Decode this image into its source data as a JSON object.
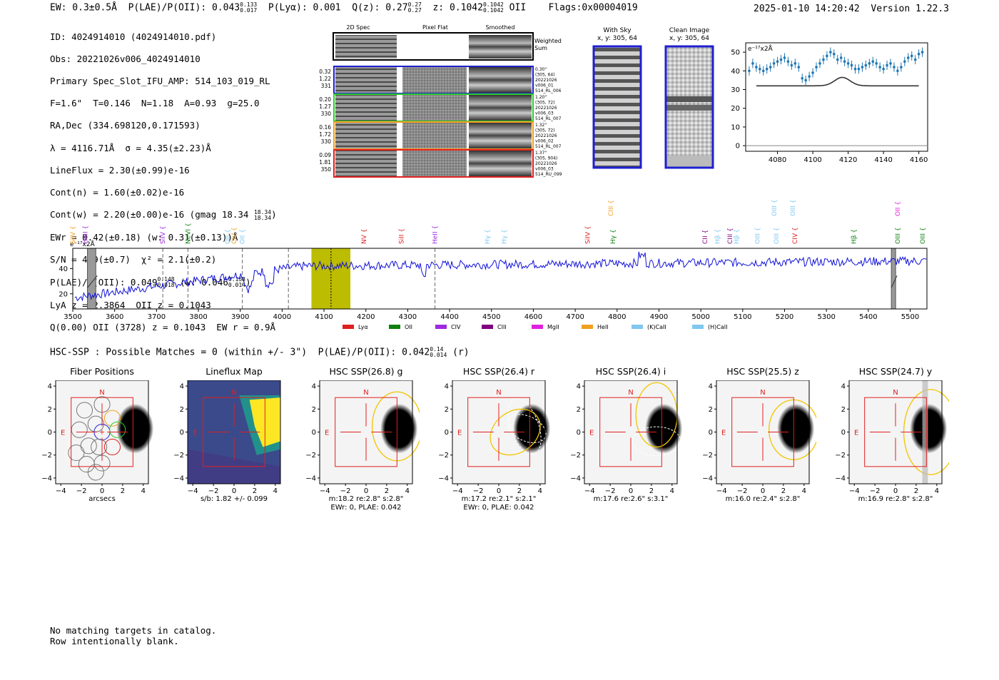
{
  "header": {
    "ew": "EW: 0.3±0.5Å",
    "plae_label": "P(LAE)/P(OII): 0.043",
    "plae_hi": "0.133",
    "plae_lo": "0.017",
    "plya": "P(Lyα): 0.001",
    "qz_label": "Q(z): 0.27",
    "qz_hi": "0.27",
    "qz_lo": "0.27",
    "z_label": "z: 0.1042",
    "z_hi": "0.1042",
    "z_lo": "0.1042",
    "z_line": "OII",
    "flags": "Flags:0x00004019",
    "timestamp": "2025-01-10 14:20:42",
    "version": "Version 1.22.3"
  },
  "info": {
    "id": "ID: 4024914010 (4024914010.pdf)",
    "obs": "Obs: 20221026v006_4024914010",
    "slot": "Primary Spec_Slot_IFU_AMP: 514_103_019_RL",
    "params": "F=1.6\"  T=0.146  N=1.18  A=0.93  g=25.0",
    "radec": "RA,Dec (334.698120,0.171593)",
    "lambda": "λ = 4116.71Å  σ = 4.35(±2.23)Å",
    "lineflux": "LineFlux = 2.30(±0.99)e-16",
    "contn": "Cont(n) = 1.60(±0.02)e-16",
    "contw": "Cont(w) = 2.20(±0.00)e-16 (gmag 18.34",
    "contw_hi": "18.34",
    "contw_lo": "18.34",
    "contw_end": ")",
    "ewr": "EWr = 0.42(±0.18) (w: 0.31(±0.13))Å",
    "sn": "S/N = 4.9(±0.7)  χ² = 2.1(±0.2)",
    "plae": "P(LAE)/P(OII): 0.049",
    "plae_hi": "0.148",
    "plae_lo": "0.018",
    "plae_w": "(w: 0.046",
    "plae_w_hi": "0.158",
    "plae_w_lo": "0.014",
    "plae_w_end": ")",
    "lya": "LyA z = 2.3864  OII z = 0.1043",
    "q": "Q(0.00) OII (3728) z = 0.1043  EW r = 0.9Å"
  },
  "cutouts": {
    "col_2d": "2D Spec",
    "col_flat": "Pixel Flat",
    "col_smooth": "Smoothed",
    "weighted": "Weighted\nSum",
    "rows": [
      {
        "left": [
          "0.32",
          "1.22",
          "331"
        ],
        "right": [
          "0.30\"",
          "(305, 64)",
          "20221026",
          "v006_01",
          "514_RL_006"
        ],
        "color": "#1f1fd0"
      },
      {
        "left": [
          "0.20",
          "1.27",
          "330"
        ],
        "right": [
          "1.20\"",
          "(305, 72)",
          "20221026",
          "v006_03",
          "514_RL_007"
        ],
        "color": "#2ecc2e"
      },
      {
        "left": [
          "0.16",
          "1.72",
          "330"
        ],
        "right": [
          "1.32\"",
          "(305, 72)",
          "20221026",
          "v006_02",
          "514_RL_007"
        ],
        "color": "#f0a020"
      },
      {
        "left": [
          "0.09",
          "1.81",
          "350"
        ],
        "right": [
          "1.37\"",
          "(305, 904)",
          "20221026",
          "v006_03",
          "514_RU_099"
        ],
        "color": "#e02020"
      }
    ],
    "with_sky": "With Sky",
    "with_sky_xy": "x, y: 305, 64",
    "clean": "Clean Image",
    "clean_xy": "x, y: 305, 64"
  },
  "chart_data": [
    {
      "type": "scatter",
      "title": "",
      "ylabel_text": "e⁻¹⁷x2Å",
      "xlim": [
        4062,
        4165
      ],
      "ylim": [
        -3,
        55
      ],
      "xticks": [
        4080,
        4100,
        4120,
        4140,
        4160
      ],
      "yticks": [
        0,
        10,
        20,
        30,
        40,
        50
      ],
      "x": [
        4064,
        4066,
        4068,
        4070,
        4072,
        4074,
        4076,
        4078,
        4080,
        4082,
        4084,
        4086,
        4088,
        4090,
        4092,
        4094,
        4096,
        4098,
        4100,
        4102,
        4104,
        4106,
        4108,
        4110,
        4112,
        4114,
        4116,
        4118,
        4120,
        4122,
        4124,
        4126,
        4128,
        4130,
        4132,
        4134,
        4136,
        4138,
        4140,
        4142,
        4144,
        4146,
        4148,
        4150,
        4152,
        4154,
        4156,
        4158,
        4160,
        4162
      ],
      "y": [
        40,
        44,
        42,
        41,
        40,
        41,
        42,
        44,
        45,
        46,
        47,
        45,
        43,
        44,
        42,
        36,
        35,
        37,
        39,
        42,
        44,
        46,
        48,
        50,
        49,
        46,
        47,
        45,
        44,
        43,
        41,
        41,
        42,
        43,
        44,
        45,
        44,
        42,
        41,
        43,
        44,
        42,
        40,
        42,
        45,
        47,
        48,
        46,
        49,
        50
      ],
      "fit": {
        "baseline": 32,
        "amp": 4.5,
        "center": 4116.7,
        "sigma": 4.35,
        "xrange": [
          4068,
          4160
        ]
      }
    },
    {
      "type": "line",
      "ylabel_text": "e⁻¹⁷x2Å",
      "xlim": [
        3500,
        5540
      ],
      "ylim": [
        8,
        56
      ],
      "xticks": [
        3500,
        3600,
        3700,
        3800,
        3900,
        4000,
        4100,
        4200,
        4300,
        4400,
        4500,
        4600,
        4700,
        4800,
        4900,
        5000,
        5100,
        5200,
        5300,
        5400,
        5500
      ],
      "yticks": [
        20,
        40
      ],
      "highlight": [
        4070,
        4163
      ],
      "marker": 4116.7,
      "hatched": [
        [
          3535,
          3555
        ],
        [
          5455,
          5465
        ]
      ],
      "dashed": [
        3715,
        3775,
        3905,
        4015,
        4365
      ],
      "lines": [
        {
          "name": "SiIV",
          "x": 3500,
          "color": "#f0a020",
          "row": 0
        },
        {
          "name": "HeII",
          "x": 3530,
          "color": "#9d2ae0",
          "row": 0
        },
        {
          "name": "SiIV",
          "x": 3715,
          "color": "#9d2ae0",
          "row": 0
        },
        {
          "name": "NeVI",
          "x": 3775,
          "color": "#108010",
          "row": 0
        },
        {
          "name": "OII",
          "x": 3870,
          "color": "#80c8f0",
          "row": 0
        },
        {
          "name": "CIV",
          "x": 3885,
          "color": "#f0a020",
          "row": 0
        },
        {
          "name": "OII",
          "x": 3905,
          "color": "#80c8f0",
          "row": 0
        },
        {
          "name": "NV",
          "x": 4195,
          "color": "#e02020",
          "row": 0
        },
        {
          "name": "SiII",
          "x": 4285,
          "color": "#e02020",
          "row": 0
        },
        {
          "name": "HeII",
          "x": 4365,
          "color": "#9d2ae0",
          "row": 0
        },
        {
          "name": "Hγ",
          "x": 4490,
          "color": "#80c8f0",
          "row": 0
        },
        {
          "name": "Hγ",
          "x": 4530,
          "color": "#80c8f0",
          "row": 0
        },
        {
          "name": "SiIV",
          "x": 4730,
          "color": "#e02020",
          "row": 0
        },
        {
          "name": "CIII",
          "x": 4785,
          "color": "#f0a020",
          "row": 1
        },
        {
          "name": "Hγ",
          "x": 4790,
          "color": "#108010",
          "row": 0
        },
        {
          "name": "CII",
          "x": 5010,
          "color": "#800080",
          "row": 0
        },
        {
          "name": "Hβ",
          "x": 5040,
          "color": "#80c8f0",
          "row": 0
        },
        {
          "name": "CIII",
          "x": 5070,
          "color": "#800080",
          "row": 0
        },
        {
          "name": "Hβ",
          "x": 5085,
          "color": "#80c8f0",
          "row": 0
        },
        {
          "name": "OIII",
          "x": 5135,
          "color": "#80c8f0",
          "row": 0
        },
        {
          "name": "OIII",
          "x": 5180,
          "color": "#80c8f0",
          "row": 0
        },
        {
          "name": "OIII",
          "x": 5175,
          "color": "#80c8f0",
          "row": 1
        },
        {
          "name": "OIII",
          "x": 5220,
          "color": "#80c8f0",
          "row": 1
        },
        {
          "name": "CIV",
          "x": 5225,
          "color": "#e02020",
          "row": 0
        },
        {
          "name": "Hβ",
          "x": 5365,
          "color": "#108010",
          "row": 0
        },
        {
          "name": "OIII",
          "x": 5470,
          "color": "#108010",
          "row": 0
        },
        {
          "name": "OII",
          "x": 5470,
          "color": "#e020e0",
          "row": 1
        },
        {
          "name": "OIII",
          "x": 5530,
          "color": "#108010",
          "row": 0
        }
      ],
      "legend": [
        {
          "name": "Lyα",
          "color": "#e02020"
        },
        {
          "name": "OII",
          "color": "#108010"
        },
        {
          "name": "CIV",
          "color": "#9d2ae0"
        },
        {
          "name": "CIII",
          "color": "#800080"
        },
        {
          "name": "MgII",
          "color": "#e020e0"
        },
        {
          "name": "HeII",
          "color": "#f0a020"
        },
        {
          "name": "(K)CaII",
          "color": "#80c8f0"
        },
        {
          "name": "(H)CaII",
          "color": "#80c8f0"
        }
      ]
    }
  ],
  "hsc": {
    "title": "HSC-SSP : Possible Matches = 0 (within +/- 3\")  P(LAE)/P(OII): 0.042",
    "hi": "0.14",
    "lo": "0.014",
    "band": "(r)",
    "panels": [
      {
        "title": "Fiber Positions",
        "caption": [
          "arcsecs"
        ]
      },
      {
        "title": "Lineflux Map",
        "caption": [
          "s/b: 1.82 +/- 0.099"
        ]
      },
      {
        "title": "HSC SSP(26.8) g",
        "caption": [
          "m:18.2  re:2.8\"  s:2.8\"",
          "EWr: 0, PLAE: 0.042"
        ]
      },
      {
        "title": "HSC SSP(26.4) r",
        "caption": [
          "m:17.2  re:2.1\"  s:2.1\"",
          "EWr: 0, PLAE: 0.042"
        ]
      },
      {
        "title": "HSC SSP(26.4) i",
        "caption": [
          "m:17.6  re:2.6\"  s:3.1\""
        ]
      },
      {
        "title": "HSC SSP(25.5) z",
        "caption": [
          "m:16.0  re:2.4\"  s:2.8\""
        ]
      },
      {
        "title": "HSC SSP(24.7) y",
        "caption": [
          "m:16.9  re:2.8\"  s:2.8\""
        ]
      }
    ],
    "axis_ticks": [
      "4",
      "2",
      "0",
      "−2",
      "−4"
    ],
    "x_ticks": [
      "−4",
      "−2",
      "0",
      "2",
      "4"
    ],
    "n_label": "N",
    "e_label": "E"
  },
  "footer": {
    "line1": "No matching targets in catalog.",
    "line2": "Row intentionally blank."
  }
}
